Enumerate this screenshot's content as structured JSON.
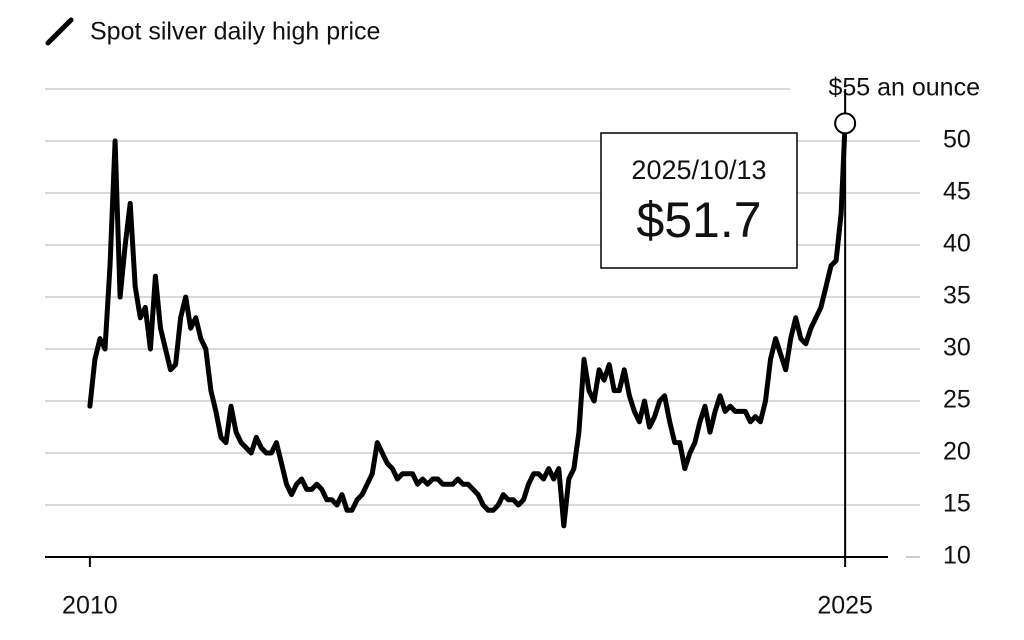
{
  "chart_data": {
    "type": "line",
    "x": [
      2010.8,
      2010.9,
      2011.0,
      2011.1,
      2011.2,
      2011.3,
      2011.4,
      2011.5,
      2011.6,
      2011.7,
      2011.8,
      2011.9,
      2012.0,
      2012.1,
      2012.2,
      2012.3,
      2012.4,
      2012.5,
      2012.6,
      2012.7,
      2012.8,
      2012.9,
      2013.0,
      2013.1,
      2013.2,
      2013.3,
      2013.4,
      2013.5,
      2013.6,
      2013.7,
      2013.8,
      2013.9,
      2014.0,
      2014.1,
      2014.2,
      2014.3,
      2014.4,
      2014.5,
      2014.6,
      2014.7,
      2014.8,
      2014.9,
      2015.0,
      2015.1,
      2015.2,
      2015.3,
      2015.4,
      2015.5,
      2015.6,
      2015.7,
      2015.8,
      2015.9,
      2016.0,
      2016.1,
      2016.2,
      2016.3,
      2016.4,
      2016.5,
      2016.6,
      2016.7,
      2016.8,
      2016.9,
      2017.0,
      2017.1,
      2017.2,
      2017.3,
      2017.4,
      2017.5,
      2017.6,
      2017.7,
      2017.8,
      2017.9,
      2018.0,
      2018.1,
      2018.2,
      2018.3,
      2018.4,
      2018.5,
      2018.6,
      2018.7,
      2018.8,
      2018.9,
      2019.0,
      2019.1,
      2019.2,
      2019.3,
      2019.4,
      2019.5,
      2019.6,
      2019.7,
      2019.8,
      2019.9,
      2020.0,
      2020.1,
      2020.2,
      2020.3,
      2020.4,
      2020.5,
      2020.6,
      2020.7,
      2020.8,
      2020.9,
      2021.0,
      2021.1,
      2021.2,
      2021.3,
      2021.4,
      2021.5,
      2021.6,
      2021.7,
      2021.8,
      2021.9,
      2022.0,
      2022.1,
      2022.2,
      2022.3,
      2022.4,
      2022.5,
      2022.6,
      2022.7,
      2022.8,
      2022.9,
      2023.0,
      2023.1,
      2023.2,
      2023.3,
      2023.4,
      2023.5,
      2023.6,
      2023.7,
      2023.8,
      2023.9,
      2024.0,
      2024.1,
      2024.2,
      2024.3,
      2024.4,
      2024.5,
      2024.6,
      2024.7,
      2024.8,
      2024.9,
      2025.0,
      2025.1,
      2025.2,
      2025.3,
      2025.4,
      2025.5,
      2025.6,
      2025.7,
      2025.78
    ],
    "series": [
      {
        "name": "Spot silver daily high price",
        "color": "#000000",
        "values": [
          24.5,
          29,
          31,
          30,
          38,
          50,
          35,
          40,
          44,
          36,
          33,
          34,
          30,
          37,
          32,
          30,
          28,
          28.5,
          33,
          35,
          32,
          33,
          31,
          30,
          26,
          24,
          21.5,
          21,
          24.5,
          22,
          21,
          20.5,
          20,
          21.5,
          20.5,
          20,
          20,
          21,
          19,
          17,
          16,
          17,
          17.5,
          16.5,
          16.5,
          17,
          16.5,
          15.5,
          15.5,
          15,
          16,
          14.5,
          14.5,
          15.5,
          16,
          17,
          18,
          21,
          20,
          19,
          18.5,
          17.5,
          18,
          18,
          18,
          17,
          17.5,
          17,
          17.5,
          17.5,
          17,
          17,
          17,
          17.5,
          17,
          17,
          16.5,
          16,
          15,
          14.5,
          14.5,
          15,
          16,
          15.5,
          15.5,
          15,
          15.5,
          17,
          18,
          18,
          17.5,
          18.5,
          17.5,
          18.5,
          13,
          17.5,
          18.5,
          22,
          29,
          26,
          25,
          28,
          27,
          28.5,
          26,
          26,
          28,
          25.5,
          24,
          23,
          25,
          22.5,
          23.5,
          25,
          25.5,
          23,
          21,
          21,
          18.5,
          20,
          21,
          23,
          24.5,
          22,
          24,
          25.5,
          24,
          24.5,
          24,
          24,
          24,
          23,
          23.5,
          23,
          25,
          29,
          31,
          29.5,
          28,
          31,
          33,
          31,
          30.5,
          32,
          33,
          34,
          36,
          38,
          38.5,
          43,
          51.7
        ]
      }
    ],
    "xlim": [
      2009.91,
      2026.63
    ],
    "xticks": [
      {
        "value": 2010.8,
        "label": "2010"
      },
      {
        "value": 2025.78,
        "label": "2025"
      }
    ],
    "ylim": [
      10,
      55
    ],
    "yticks": [
      10,
      15,
      20,
      25,
      30,
      35,
      40,
      45,
      50,
      {
        "value": 55,
        "label": "$55 an ounce"
      }
    ],
    "grid": true,
    "highlight": {
      "label": "2025/10/13",
      "value_label": "$51.7"
    }
  }
}
